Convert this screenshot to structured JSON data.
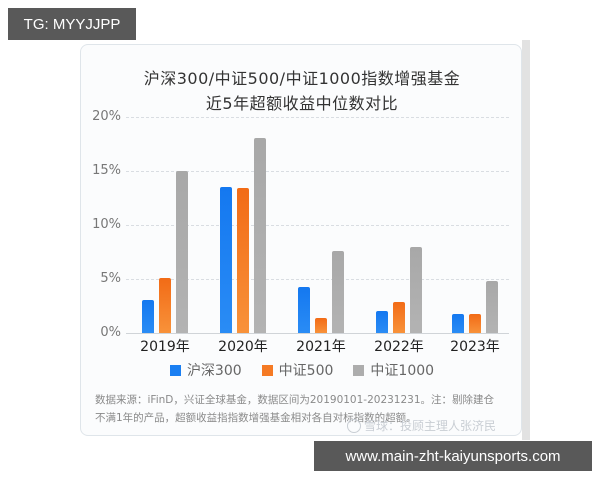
{
  "overlay": {
    "tg_label": "TG: MYYJJPP",
    "url_label": "www.main-zht-kaiyunsports.com"
  },
  "chart_data": {
    "type": "bar",
    "title": "沪深300/中证500/中证1000指数增强基金",
    "subtitle": "近5年超额收益中位数对比",
    "categories": [
      "2019年",
      "2020年",
      "2021年",
      "2022年",
      "2023年"
    ],
    "series": [
      {
        "name": "沪深300",
        "color": "#1a7ff2",
        "values": [
          3.1,
          13.5,
          4.3,
          2.0,
          1.8
        ]
      },
      {
        "name": "中证500",
        "color": "#f57a24",
        "values": [
          5.1,
          13.4,
          1.4,
          2.9,
          1.8
        ]
      },
      {
        "name": "中证1000",
        "color": "#adadad",
        "values": [
          15.0,
          18.1,
          7.6,
          8.0,
          4.8
        ]
      }
    ],
    "xlabel": "",
    "ylabel": "",
    "ylim": [
      0,
      20
    ],
    "yticks": [
      "0%",
      "5%",
      "10%",
      "15%",
      "20%"
    ],
    "grid": true,
    "legend_position": "bottom",
    "unit": "%"
  },
  "footer": {
    "note_line1": "数据来源：iFinD，兴证全球基金，数据区间为20190101-20231231。注：剔除建仓",
    "note_line2": "不满1年的产品，超额收益指指数增强基金相对各自对标指数的超额。",
    "watermark": "雪球：投顾主理人张济民"
  }
}
